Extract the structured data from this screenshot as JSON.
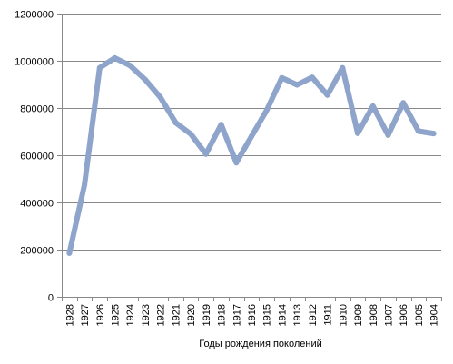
{
  "chart_data": {
    "type": "line",
    "title": "",
    "xlabel": "Годы рождения поколений",
    "ylabel": "",
    "ylim": [
      0,
      1200000
    ],
    "yticks": [
      "0",
      "200000",
      "400000",
      "600000",
      "800000",
      "1000000",
      "1200000"
    ],
    "grid": true,
    "legend": "none",
    "categories": [
      "1928",
      "1927",
      "1926",
      "1925",
      "1924",
      "1923",
      "1922",
      "1921",
      "1920",
      "1919",
      "1918",
      "1917",
      "1916",
      "1915",
      "1914",
      "1913",
      "1912",
      "1911",
      "1910",
      "1909",
      "1908",
      "1907",
      "1906",
      "1905",
      "1904"
    ],
    "series": [
      {
        "name": "",
        "color": "#8EA4CB",
        "values": [
          185000,
          475000,
          970000,
          1012000,
          980000,
          920000,
          845000,
          738000,
          690000,
          605000,
          730000,
          568000,
          680000,
          790000,
          928000,
          898000,
          930000,
          855000,
          970000,
          693000,
          808000,
          685000,
          822000,
          702000,
          692000
        ]
      }
    ]
  }
}
